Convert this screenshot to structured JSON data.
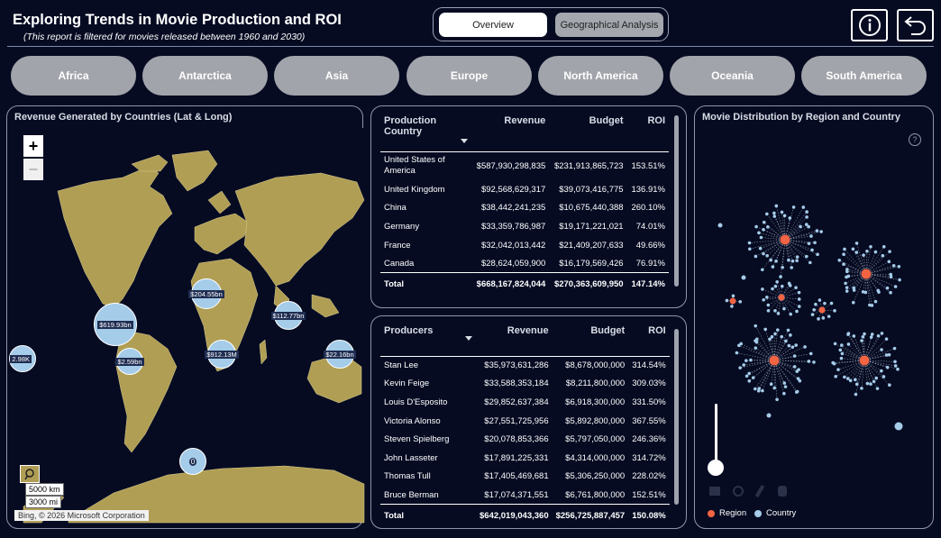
{
  "header": {
    "title": "Exploring Trends in Movie Production and ROI",
    "subtitle": "(This report is filtered for movies released between 1960 and 2030)",
    "tabs": [
      {
        "label": "Overview"
      },
      {
        "label": "Geographical Analysis"
      }
    ],
    "info_icon": "info-icon",
    "back_icon": "back-arrow-icon"
  },
  "regions": [
    "Africa",
    "Antarctica",
    "Asia",
    "Europe",
    "North America",
    "Oceania",
    "South America"
  ],
  "map_panel": {
    "title": "Revenue Generated by Countries (Lat & Long)",
    "bubbles": [
      {
        "label": "$619.93bn"
      },
      {
        "label": "$204.55bn"
      },
      {
        "label": "$112.77bn"
      },
      {
        "label": "$912.13M"
      },
      {
        "label": "$2.59bn"
      },
      {
        "label": "2.98K"
      },
      {
        "label": "$22.16bn"
      },
      {
        "label": "0"
      }
    ],
    "zoom_in": "+",
    "zoom_out": "−",
    "scale_km": "5000 km",
    "scale_mi": "3000 mi",
    "attribution": "Bing, © 2026 Microsoft Corporation",
    "land_color": "#b09e54",
    "bubble_color": "#a5cce9"
  },
  "country_table": {
    "columns": [
      "Production Country",
      "Revenue",
      "Budget",
      "ROI"
    ],
    "rows": [
      {
        "name": "United States of America",
        "revenue": "$587,930,298,835",
        "budget": "$231,913,865,723",
        "roi": "153.51%"
      },
      {
        "name": "United Kingdom",
        "revenue": "$92,568,629,317",
        "budget": "$39,073,416,775",
        "roi": "136.91%"
      },
      {
        "name": "China",
        "revenue": "$38,442,241,235",
        "budget": "$10,675,440,388",
        "roi": "260.10%"
      },
      {
        "name": "Germany",
        "revenue": "$33,359,786,987",
        "budget": "$19,171,221,021",
        "roi": "74.01%"
      },
      {
        "name": "France",
        "revenue": "$32,042,013,442",
        "budget": "$21,409,207,633",
        "roi": "49.66%"
      },
      {
        "name": "Canada",
        "revenue": "$28,624,059,900",
        "budget": "$16,179,569,426",
        "roi": "76.91%"
      }
    ],
    "total": {
      "name": "Total",
      "revenue": "$668,167,824,044",
      "budget": "$270,363,609,950",
      "roi": "147.14%"
    }
  },
  "producer_table": {
    "columns": [
      "Producers",
      "Revenue",
      "Budget",
      "ROI"
    ],
    "rows": [
      {
        "name": "Stan Lee",
        "revenue": "$35,973,631,286",
        "budget": "$8,678,000,000",
        "roi": "314.54%"
      },
      {
        "name": "Kevin Feige",
        "revenue": "$33,588,353,184",
        "budget": "$8,211,800,000",
        "roi": "309.03%"
      },
      {
        "name": "Louis D'Esposito",
        "revenue": "$29,852,637,384",
        "budget": "$6,918,300,000",
        "roi": "331.50%"
      },
      {
        "name": "Victoria Alonso",
        "revenue": "$27,551,725,956",
        "budget": "$5,892,800,000",
        "roi": "367.55%"
      },
      {
        "name": "Steven Spielberg",
        "revenue": "$20,078,853,366",
        "budget": "$5,797,050,000",
        "roi": "246.36%"
      },
      {
        "name": "John Lasseter",
        "revenue": "$17,891,225,331",
        "budget": "$4,314,000,000",
        "roi": "314.72%"
      },
      {
        "name": "Thomas Tull",
        "revenue": "$17,405,469,681",
        "budget": "$5,306,250,000",
        "roi": "228.02%"
      },
      {
        "name": "Bruce Berman",
        "revenue": "$17,074,371,551",
        "budget": "$6,761,800,000",
        "roi": "152.51%"
      }
    ],
    "total": {
      "name": "Total",
      "revenue": "$642,019,043,360",
      "budget": "$256,725,887,457",
      "roi": "150.08%"
    }
  },
  "distribution_panel": {
    "title": "Movie Distribution by Region and Country",
    "help_icon": "question-circle-icon",
    "legend": [
      {
        "label": "Region",
        "color": "#f26443"
      },
      {
        "label": "Country",
        "color": "#a5cce9"
      }
    ]
  }
}
